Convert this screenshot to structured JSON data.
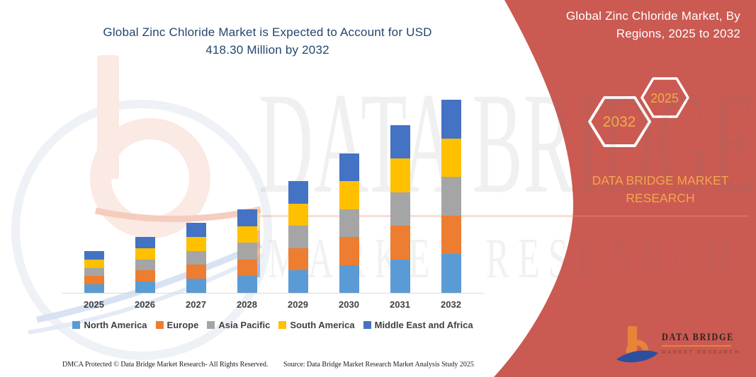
{
  "left_title": {
    "line1": "Global Zinc Chloride Market is Expected to Account for USD",
    "line2": "418.30 Million by 2032"
  },
  "right_panel": {
    "color": "#CB5A52",
    "title_line1": "Global Zinc Chloride Market, By",
    "title_line2": "Regions, 2025 to 2032",
    "hexagons": [
      {
        "label": "2032"
      },
      {
        "label": "2025"
      }
    ],
    "hexagon_label_color": "#F0AE4A",
    "brand_line1": "DATA BRIDGE MARKET",
    "brand_line2": "RESEARCH",
    "brand_color": "#F2A64B"
  },
  "watermark": {
    "line1": "DATA BRIDGE",
    "line2": "MARKET RESEARCH"
  },
  "logo": {
    "title": "DATA BRIDGE",
    "subtitle": "MARKET RESEARCH"
  },
  "footer": {
    "dmca": "DMCA Protected © Data Bridge Market Research-  All Rights Reserved.",
    "source": "Source: Data Bridge Market Research  Market Analysis Study 2025"
  },
  "chart_data": {
    "type": "bar",
    "stacked": true,
    "unit": "USD Million",
    "title": "Global Zinc Chloride Market is Expected to Account for USD 418.30 Million by 2032",
    "xlabel": "",
    "ylabel": "",
    "ylim": [
      0,
      440
    ],
    "gridlines": false,
    "legend_position": "bottom",
    "categories": [
      "2025",
      "2026",
      "2027",
      "2028",
      "2029",
      "2030",
      "2031",
      "2032"
    ],
    "totals": [
      90.5,
      121.0,
      151.5,
      181.0,
      242.0,
      302.0,
      363.0,
      418.3
    ],
    "series": [
      {
        "name": "North America",
        "color": "#5B9BD5",
        "values": [
          18.1,
          24.2,
          30.3,
          36.2,
          48.4,
          60.4,
          72.6,
          83.7
        ]
      },
      {
        "name": "Europe",
        "color": "#ED7D31",
        "values": [
          18.1,
          24.2,
          30.3,
          36.2,
          48.4,
          60.4,
          72.6,
          83.7
        ]
      },
      {
        "name": "Asia Pacific",
        "color": "#A5A5A5",
        "values": [
          18.1,
          24.2,
          30.3,
          36.2,
          48.4,
          60.4,
          72.6,
          83.7
        ]
      },
      {
        "name": "South America",
        "color": "#FFC000",
        "values": [
          18.1,
          24.2,
          30.3,
          36.2,
          48.4,
          60.4,
          72.6,
          83.7
        ]
      },
      {
        "name": "Middle East and Africa",
        "color": "#4472C4",
        "values": [
          18.1,
          24.2,
          30.3,
          36.2,
          48.4,
          60.4,
          72.6,
          83.7
        ]
      }
    ]
  }
}
